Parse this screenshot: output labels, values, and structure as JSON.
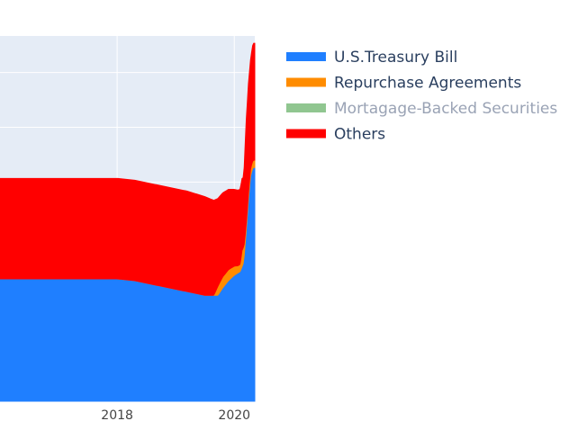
{
  "chart_data": {
    "type": "area",
    "stacked": true,
    "grid": true,
    "legend_position": "right",
    "x_ticks": [
      {
        "value": 2018,
        "label": "2018"
      },
      {
        "value": 2020,
        "label": "2020"
      }
    ],
    "xlim": [
      2016.0,
      2020.35
    ],
    "ylim": [
      0,
      1
    ],
    "series": [
      {
        "name": "U.S.Treasury Bill",
        "color": "#1f7fff",
        "visible": true,
        "x": [
          2016.0,
          2017.0,
          2017.5,
          2018.0,
          2018.3,
          2018.6,
          2018.9,
          2019.2,
          2019.5,
          2019.65,
          2019.72,
          2019.8,
          2019.9,
          2020.0,
          2020.1,
          2020.16,
          2020.2,
          2020.24,
          2020.28,
          2020.32,
          2020.35
        ],
        "values": [
          0.335,
          0.335,
          0.335,
          0.335,
          0.33,
          0.32,
          0.31,
          0.3,
          0.29,
          0.29,
          0.29,
          0.31,
          0.33,
          0.345,
          0.355,
          0.38,
          0.46,
          0.55,
          0.62,
          0.64,
          0.64
        ]
      },
      {
        "name": "Repurchase Agreements",
        "color": "#ff8c00",
        "visible": true,
        "x": [
          2016.0,
          2019.65,
          2019.72,
          2019.8,
          2019.9,
          2020.0,
          2020.06,
          2020.1,
          2020.14,
          2020.18,
          2020.22,
          2020.26,
          2020.3,
          2020.35
        ],
        "values": [
          0.0,
          0.0,
          0.025,
          0.03,
          0.03,
          0.025,
          0.02,
          0.02,
          0.05,
          0.025,
          0.015,
          0.018,
          0.02,
          0.02
        ]
      },
      {
        "name": "Mortagage-Backed Securities",
        "color": "#90c690",
        "visible": false,
        "x": [],
        "values": []
      },
      {
        "name": "Others",
        "color": "#ff0000",
        "visible": true,
        "x": [
          2016.0,
          2017.0,
          2017.5,
          2018.0,
          2018.3,
          2018.6,
          2018.9,
          2019.2,
          2019.5,
          2019.65,
          2019.72,
          2019.8,
          2019.9,
          2020.0,
          2020.1,
          2020.16,
          2020.2,
          2020.24,
          2020.28,
          2020.32,
          2020.35
        ],
        "values": [
          0.275,
          0.275,
          0.275,
          0.275,
          0.275,
          0.275,
          0.275,
          0.275,
          0.27,
          0.26,
          0.24,
          0.23,
          0.22,
          0.21,
          0.205,
          0.19,
          0.28,
          0.3,
          0.3,
          0.32,
          0.32
        ]
      }
    ]
  }
}
